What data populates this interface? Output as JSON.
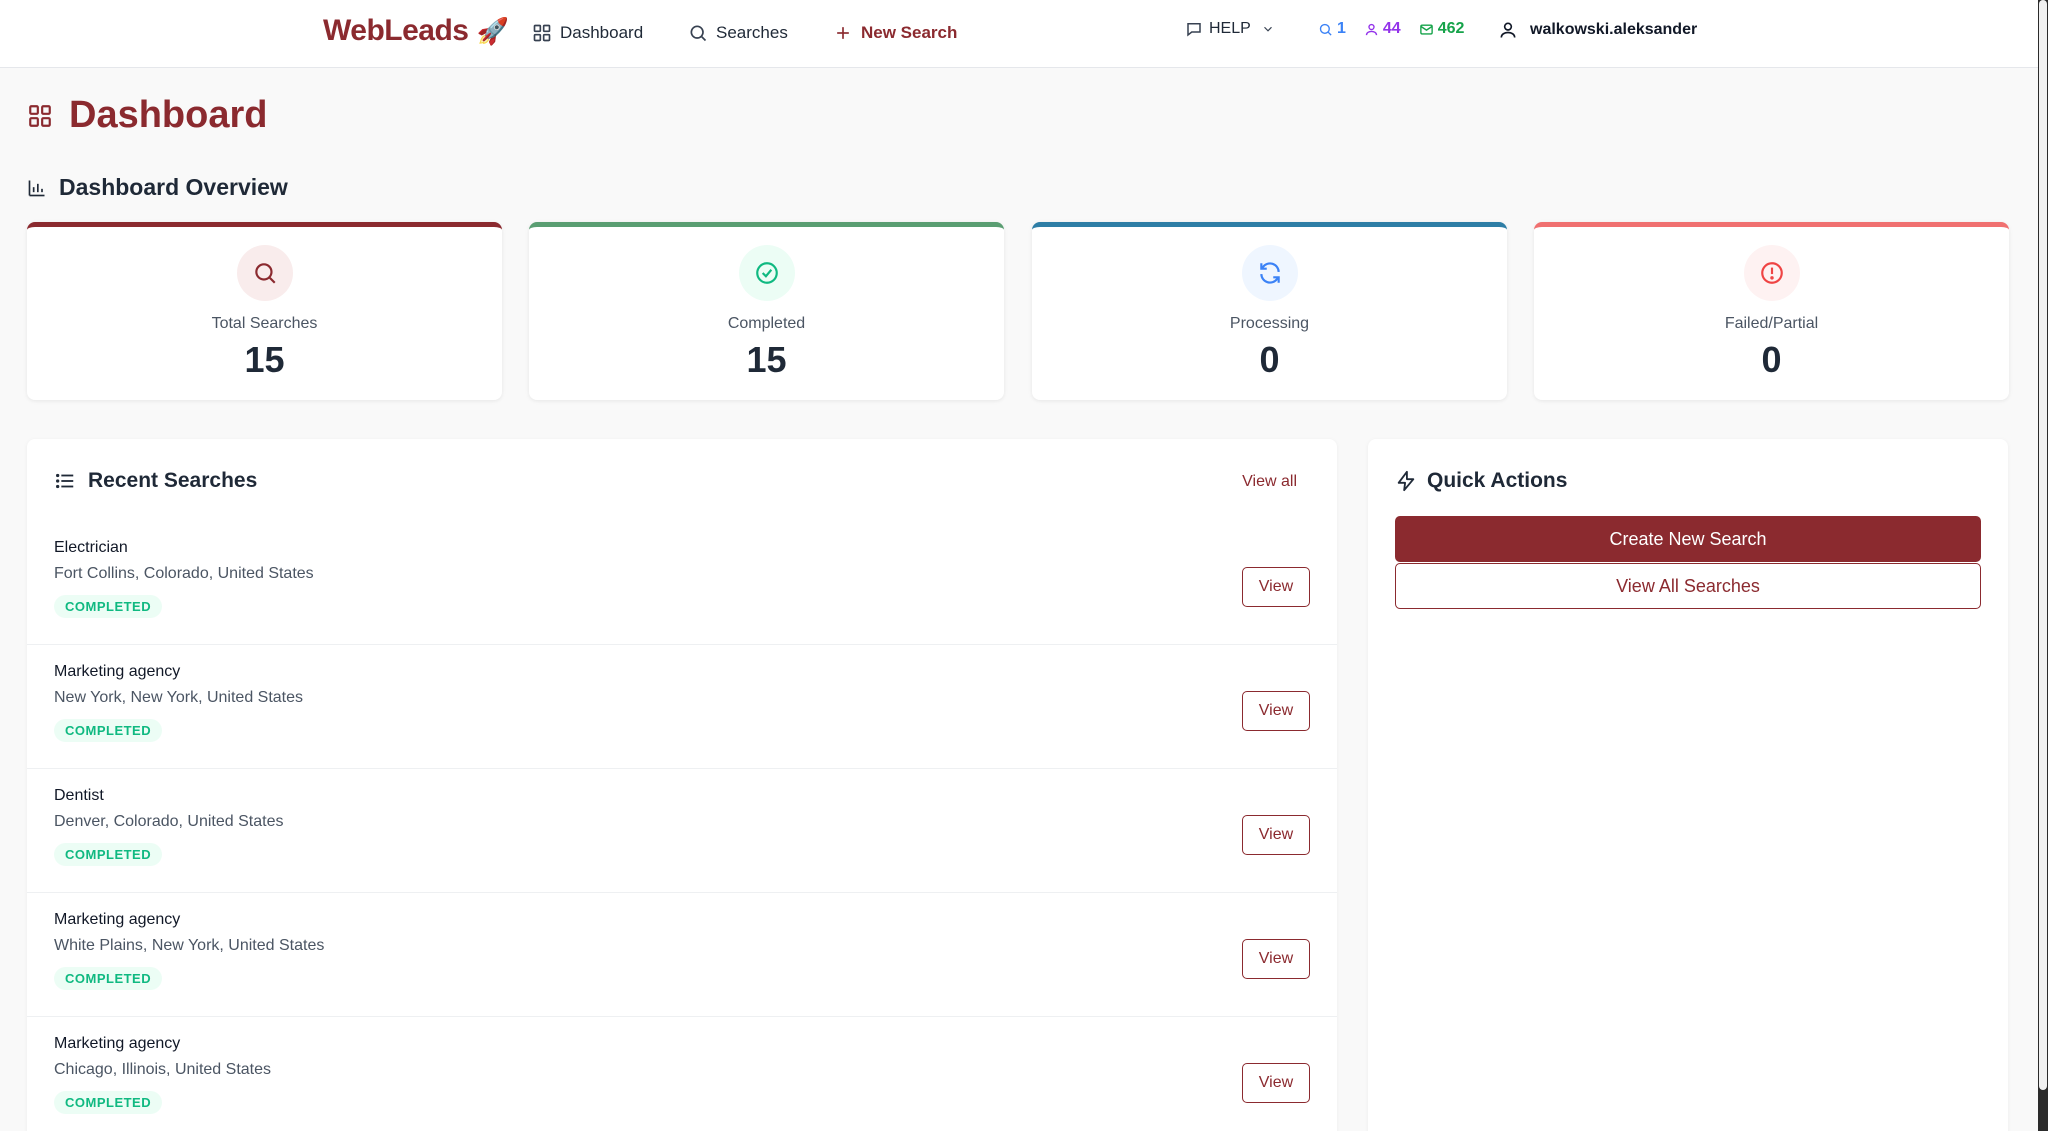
{
  "nav": {
    "logo": "WebLeads",
    "logo_emoji": "🚀",
    "dashboard_label": "Dashboard",
    "searches_label": "Searches",
    "new_search_label": "New Search",
    "help_label": "HELP",
    "counters": {
      "searches": "1",
      "contacts": "44",
      "emails": "462"
    },
    "username": "walkowski.aleksander"
  },
  "page": {
    "title": "Dashboard",
    "overview_title": "Dashboard Overview"
  },
  "stats": [
    {
      "label": "Total Searches",
      "value": "15",
      "accent": "#8b2a2f",
      "icon_bg": "#f9ecec",
      "icon_color": "#8b2a2f",
      "icon": "search-icon"
    },
    {
      "label": "Completed",
      "value": "15",
      "accent": "#5a9e72",
      "icon_bg": "#ecfdf5",
      "icon_color": "#10b981",
      "icon": "check-circle-icon"
    },
    {
      "label": "Processing",
      "value": "0",
      "accent": "#2e7ea6",
      "icon_bg": "#eff6ff",
      "icon_color": "#3b82f6",
      "icon": "refresh-icon"
    },
    {
      "label": "Failed/Partial",
      "value": "0",
      "accent": "#f07070",
      "icon_bg": "#fef2f2",
      "icon_color": "#ef4444",
      "icon": "alert-circle-icon"
    }
  ],
  "recent": {
    "title": "Recent Searches",
    "view_all": "View all",
    "view_label": "View",
    "items": [
      {
        "title": "Electrician",
        "location": "Fort Collins, Colorado, United States",
        "status": "COMPLETED"
      },
      {
        "title": "Marketing agency",
        "location": "New York, New York, United States",
        "status": "COMPLETED"
      },
      {
        "title": "Dentist",
        "location": "Denver, Colorado, United States",
        "status": "COMPLETED"
      },
      {
        "title": "Marketing agency",
        "location": "White Plains, New York, United States",
        "status": "COMPLETED"
      },
      {
        "title": "Marketing agency",
        "location": "Chicago, Illinois, United States",
        "status": "COMPLETED"
      }
    ]
  },
  "quick": {
    "title": "Quick Actions",
    "create_label": "Create New Search",
    "view_all_label": "View All Searches"
  }
}
